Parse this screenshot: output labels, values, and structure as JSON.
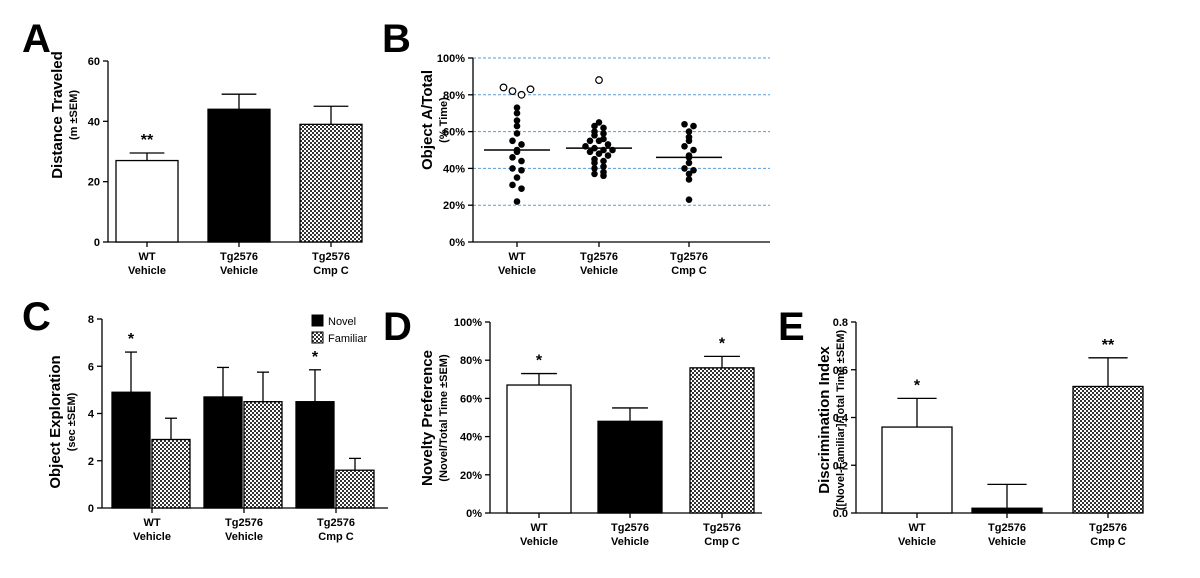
{
  "colors": {
    "black": "#000000",
    "white": "#ffffff",
    "grid": "#5b9bd5"
  },
  "chart_data": [
    {
      "panel": "A",
      "type": "bar",
      "title": "",
      "ylabel": "Distance Traveled",
      "ylabel_sub": "(m ±SEM)",
      "ylim": [
        0,
        60
      ],
      "yticks": [
        "0",
        "20",
        "40",
        "60"
      ],
      "categories": [
        [
          "WT",
          "Vehicle"
        ],
        [
          "Tg2576",
          "Vehicle"
        ],
        [
          "Tg2576",
          "Cmp C"
        ]
      ],
      "values": [
        27,
        44,
        39
      ],
      "errors": [
        2.5,
        5,
        6
      ],
      "fills": [
        "white",
        "black",
        "check"
      ],
      "significance": [
        "**",
        "",
        ""
      ]
    },
    {
      "panel": "B",
      "type": "scatter",
      "ylabel": "Object A/Total",
      "ylabel_sub": "(% Time)",
      "ylim": [
        0,
        100
      ],
      "yticks": [
        "0%",
        "20%",
        "40%",
        "60%",
        "80%",
        "100%"
      ],
      "grid": true,
      "categories": [
        [
          "WT",
          "Vehicle"
        ],
        [
          "Tg2576",
          "Vehicle"
        ],
        [
          "Tg2576",
          "Cmp C"
        ]
      ],
      "medians": [
        50,
        51,
        46
      ],
      "points": [
        [
          73,
          70,
          66,
          63,
          59,
          55,
          53,
          50,
          49,
          46,
          44,
          40,
          39,
          35,
          31,
          29,
          22
        ],
        [
          65,
          63,
          62,
          60,
          59,
          58,
          56,
          55,
          55,
          53,
          52,
          51,
          50,
          50,
          49,
          48,
          47,
          45,
          44,
          43,
          41,
          40,
          38,
          37,
          36
        ],
        [
          64,
          63,
          60,
          57,
          55,
          52,
          50,
          47,
          46,
          43,
          40,
          39,
          37,
          34,
          23
        ]
      ],
      "outliers": [
        [
          84,
          82,
          80,
          83
        ],
        [
          88
        ],
        []
      ]
    },
    {
      "panel": "C",
      "type": "bar",
      "ylabel": "Object Exploration",
      "ylabel_sub": "(sec ±SEM)",
      "ylim": [
        0,
        8
      ],
      "yticks": [
        "0",
        "2",
        "4",
        "6",
        "8"
      ],
      "categories": [
        [
          "WT",
          "Vehicle"
        ],
        [
          "Tg2576",
          "Vehicle"
        ],
        [
          "Tg2576",
          "Cmp C"
        ]
      ],
      "legend": [
        "Novel",
        "Familiar"
      ],
      "series": [
        {
          "name": "Novel",
          "values": [
            4.9,
            4.7,
            4.5
          ],
          "errors": [
            1.7,
            1.25,
            1.35
          ]
        },
        {
          "name": "Familiar",
          "values": [
            2.9,
            4.5,
            1.6
          ],
          "errors": [
            0.9,
            1.25,
            0.5
          ]
        }
      ],
      "significance": [
        "*",
        "",
        "*"
      ]
    },
    {
      "panel": "D",
      "type": "bar",
      "ylabel": "Novelty Preference",
      "ylabel_sub": "(Novel/Total Time ±SEM)",
      "ylim": [
        0,
        100
      ],
      "yticks": [
        "0%",
        "20%",
        "40%",
        "60%",
        "80%",
        "100%"
      ],
      "categories": [
        [
          "WT",
          "Vehicle"
        ],
        [
          "Tg2576",
          "Vehicle"
        ],
        [
          "Tg2576",
          "Cmp C"
        ]
      ],
      "values": [
        67,
        48,
        76
      ],
      "errors": [
        6,
        7,
        6
      ],
      "fills": [
        "white",
        "black",
        "check"
      ],
      "significance": [
        "*",
        "",
        "*"
      ]
    },
    {
      "panel": "E",
      "type": "bar",
      "ylabel": "Discrimination Index",
      "ylabel_sub": "([Novel-Familiar]/Total Time ±SEM)",
      "ylim": [
        0,
        0.8
      ],
      "yticks": [
        "0.0",
        "0.2",
        "0.4",
        "0.6",
        "0.8"
      ],
      "categories": [
        [
          "WT",
          "Vehicle"
        ],
        [
          "Tg2576",
          "Vehicle"
        ],
        [
          "Tg2576",
          "Cmp C"
        ]
      ],
      "values": [
        0.36,
        0.02,
        0.53
      ],
      "errors": [
        0.12,
        0.1,
        0.12
      ],
      "fills": [
        "white",
        "black",
        "check"
      ],
      "significance": [
        "*",
        "",
        "**"
      ]
    }
  ]
}
